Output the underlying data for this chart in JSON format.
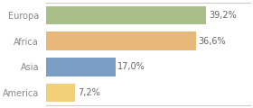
{
  "categories": [
    "Europa",
    "Africa",
    "Asia",
    "America"
  ],
  "values": [
    39.2,
    36.6,
    17.0,
    7.2
  ],
  "labels": [
    "39,2%",
    "36,6%",
    "17,0%",
    "7,2%"
  ],
  "bar_colors": [
    "#a8bf8a",
    "#e8b87a",
    "#7a9ec5",
    "#f2d07a"
  ],
  "background_color": "#ffffff",
  "xlim": [
    0,
    50
  ],
  "bar_height": 0.72,
  "label_fontsize": 7.0,
  "category_fontsize": 7.0,
  "label_color": "#666666",
  "tick_color": "#888888",
  "spine_color": "#cccccc"
}
